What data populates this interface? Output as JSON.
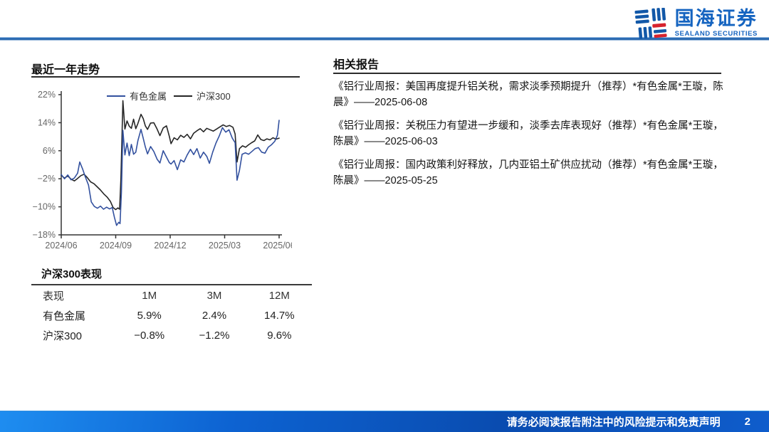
{
  "header": {
    "logo_cn": "国海证券",
    "logo_en": "SEALAND SECURITIES",
    "brand_blue": "#1564c0",
    "brand_red": "#d6232e"
  },
  "left": {
    "chart_section_title": "最近一年走势",
    "table": {
      "title": "沪深300表现",
      "headers": [
        "表现",
        "1M",
        "3M",
        "12M"
      ],
      "rows": [
        {
          "name": "有色金属",
          "m1": "5.9%",
          "m3": "2.4%",
          "m12": "14.7%"
        },
        {
          "name": "沪深300",
          "m1": "−0.8%",
          "m3": "−1.2%",
          "m12": "9.6%"
        }
      ]
    }
  },
  "right": {
    "title": "相关报告",
    "reports": [
      "《铝行业周报：美国再度提升铝关税，需求淡季预期提升（推荐）*有色金属*王璇，陈晨》——2025-06-08",
      "《铝行业周报：关税压力有望进一步缓和，淡季去库表现好（推荐）*有色金属*王璇，陈晨》——2025-06-03",
      "《铝行业周报：国内政策利好释放，几内亚铝土矿供应扰动（推荐）*有色金属*王璇，陈晨》——2025-05-25"
    ]
  },
  "footer": {
    "disclaimer": "请务必阅读报告附注中的风险提示和免责声明",
    "page": "2"
  },
  "chart_data": {
    "type": "line",
    "title": "最近一年走势",
    "xlabel": "",
    "ylabel": "",
    "ylim": [
      -18,
      22
    ],
    "grid": false,
    "legend_position": "top",
    "xticks": [
      "2024/06",
      "2024/09",
      "2024/12",
      "2025/03",
      "2025/06"
    ],
    "yticks": [
      {
        "v": 22,
        "label": "22%"
      },
      {
        "v": 14,
        "label": "14%"
      },
      {
        "v": 6,
        "label": "6%"
      },
      {
        "v": -2,
        "label": "−2%"
      },
      {
        "v": -10,
        "label": "−10%"
      },
      {
        "v": -18,
        "label": "−18%"
      }
    ],
    "series": [
      {
        "name": "有色金属",
        "color": "#33519f",
        "points": [
          [
            0,
            -0.8
          ],
          [
            1.5,
            -2.0
          ],
          [
            3,
            -0.9
          ],
          [
            4.5,
            -2.3
          ],
          [
            6,
            -1.8
          ],
          [
            7.5,
            -0.4
          ],
          [
            8.5,
            2.8
          ],
          [
            9.8,
            0.8
          ],
          [
            11,
            -1.4
          ],
          [
            12.5,
            -3.8
          ],
          [
            13.8,
            -8.6
          ],
          [
            15.2,
            -9.9
          ],
          [
            16.6,
            -10.4
          ],
          [
            18,
            -9.8
          ],
          [
            19.4,
            -10.7
          ],
          [
            20.8,
            -10.1
          ],
          [
            22.2,
            -10.6
          ],
          [
            23.4,
            -10.2
          ],
          [
            24.4,
            -13.0
          ],
          [
            25.4,
            -15.3
          ],
          [
            26.4,
            -14.4
          ],
          [
            27,
            -14.8
          ],
          [
            27.6,
            -6.0
          ],
          [
            28.3,
            11.8
          ],
          [
            29.2,
            4.8
          ],
          [
            30.2,
            8.2
          ],
          [
            31.2,
            4.6
          ],
          [
            32.2,
            7.8
          ],
          [
            33.2,
            5.0
          ],
          [
            34.2,
            5.6
          ],
          [
            35.2,
            8.9
          ],
          [
            36.6,
            12.1
          ],
          [
            37.6,
            9.6
          ],
          [
            38.6,
            7.1
          ],
          [
            39.6,
            5.1
          ],
          [
            41,
            7.2
          ],
          [
            42.5,
            5.8
          ],
          [
            44,
            3.6
          ],
          [
            45.3,
            2.5
          ],
          [
            46.8,
            6.0
          ],
          [
            48.3,
            4.2
          ],
          [
            49.6,
            2.6
          ],
          [
            50.4,
            2.2
          ],
          [
            51.8,
            3.2
          ],
          [
            53.3,
            0.6
          ],
          [
            54.8,
            3.4
          ],
          [
            56.3,
            2.8
          ],
          [
            57.8,
            4.8
          ],
          [
            59.3,
            6.4
          ],
          [
            60.8,
            4.9
          ],
          [
            62.3,
            6.6
          ],
          [
            63.8,
            3.9
          ],
          [
            65.3,
            5.6
          ],
          [
            66.8,
            4.4
          ],
          [
            68,
            2.4
          ],
          [
            69.5,
            5.6
          ],
          [
            71,
            8.2
          ],
          [
            72.5,
            10.2
          ],
          [
            74,
            12.6
          ],
          [
            75.5,
            11.3
          ],
          [
            77,
            12.0
          ],
          [
            78.5,
            9.6
          ],
          [
            79.8,
            8.3
          ],
          [
            80.7,
            -2.4
          ],
          [
            81.8,
            0.4
          ],
          [
            83,
            5.0
          ],
          [
            84.5,
            5.4
          ],
          [
            86,
            5.0
          ],
          [
            87.5,
            5.8
          ],
          [
            89,
            6.6
          ],
          [
            90.5,
            6.9
          ],
          [
            92,
            5.6
          ],
          [
            93.5,
            5.3
          ],
          [
            95,
            7.0
          ],
          [
            96.5,
            7.7
          ],
          [
            98,
            8.7
          ],
          [
            99.2,
            10.4
          ],
          [
            100,
            14.7
          ]
        ]
      },
      {
        "name": "沪深300",
        "color": "#262626",
        "points": [
          [
            0,
            -1.0
          ],
          [
            1.5,
            -1.8
          ],
          [
            3,
            -1.2
          ],
          [
            4.5,
            -2.1
          ],
          [
            6,
            -2.6
          ],
          [
            7.5,
            -1.9
          ],
          [
            9,
            -1.1
          ],
          [
            10.5,
            -0.7
          ],
          [
            12,
            -1.7
          ],
          [
            13.5,
            -2.9
          ],
          [
            15,
            -3.4
          ],
          [
            16.5,
            -4.3
          ],
          [
            18,
            -5.2
          ],
          [
            19.5,
            -6.3
          ],
          [
            21,
            -7.2
          ],
          [
            22.5,
            -8.4
          ],
          [
            23.8,
            -10.2
          ],
          [
            25,
            -10.8
          ],
          [
            26,
            -10.3
          ],
          [
            26.8,
            -10.7
          ],
          [
            27.4,
            -2.0
          ],
          [
            28.3,
            20.3
          ],
          [
            29.2,
            12.2
          ],
          [
            30.2,
            14.5
          ],
          [
            31.2,
            13.0
          ],
          [
            32.2,
            12.4
          ],
          [
            33.2,
            15.0
          ],
          [
            34.2,
            12.3
          ],
          [
            35.2,
            13.8
          ],
          [
            36.6,
            16.4
          ],
          [
            37.6,
            15.2
          ],
          [
            38.6,
            13.1
          ],
          [
            39.6,
            12.1
          ],
          [
            41,
            13.9
          ],
          [
            42.5,
            14.0
          ],
          [
            44,
            12.2
          ],
          [
            45.3,
            10.3
          ],
          [
            46.8,
            12.5
          ],
          [
            48.3,
            13.1
          ],
          [
            49.6,
            10.1
          ],
          [
            50.4,
            8.0
          ],
          [
            51.8,
            9.7
          ],
          [
            53.3,
            9.1
          ],
          [
            54.8,
            10.4
          ],
          [
            56.3,
            9.8
          ],
          [
            57.8,
            10.7
          ],
          [
            59.3,
            9.4
          ],
          [
            60.8,
            11.0
          ],
          [
            62.3,
            11.7
          ],
          [
            63.8,
            12.3
          ],
          [
            65.3,
            11.4
          ],
          [
            66.8,
            12.4
          ],
          [
            68.3,
            12.0
          ],
          [
            69.8,
            11.6
          ],
          [
            71.3,
            12.2
          ],
          [
            72.8,
            12.8
          ],
          [
            74.3,
            13.4
          ],
          [
            75.8,
            12.9
          ],
          [
            77.3,
            13.2
          ],
          [
            78.8,
            12.7
          ],
          [
            79.8,
            10.8
          ],
          [
            80.7,
            2.8
          ],
          [
            81.8,
            6.6
          ],
          [
            83.2,
            7.4
          ],
          [
            84.6,
            7.0
          ],
          [
            86,
            7.7
          ],
          [
            87.4,
            8.3
          ],
          [
            88.8,
            8.8
          ],
          [
            90.2,
            10.5
          ],
          [
            91.6,
            9.2
          ],
          [
            93,
            8.9
          ],
          [
            94.4,
            9.4
          ],
          [
            95.8,
            9.1
          ],
          [
            97.2,
            9.7
          ],
          [
            98.6,
            9.3
          ],
          [
            100,
            9.6
          ]
        ]
      }
    ]
  }
}
